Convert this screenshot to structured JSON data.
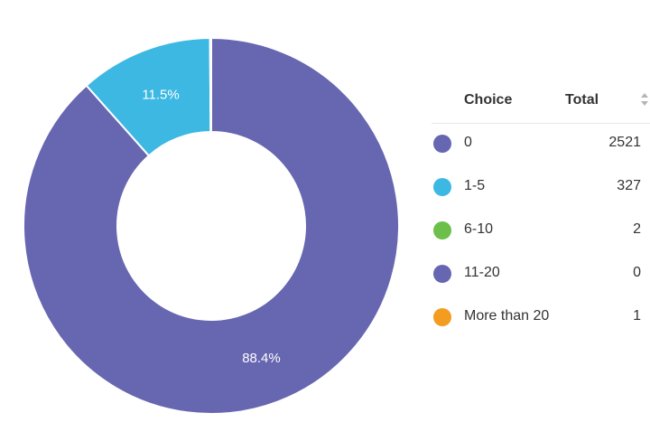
{
  "chart_data": {
    "type": "pie",
    "categories": [
      "0",
      "1-5",
      "6-10",
      "11-20",
      "More than 20"
    ],
    "values": [
      2521,
      327,
      2,
      0,
      1
    ],
    "colors": [
      "#6766b0",
      "#3db8e3",
      "#6cc04a",
      "#6766b0",
      "#f39c1f"
    ],
    "slice_labels": [
      "88.4%",
      "11.5%",
      "",
      "",
      ""
    ],
    "donut": true
  },
  "legend": {
    "header_choice": "Choice",
    "header_total": "Total",
    "sort_icon": "sort-arrows-icon",
    "rows": [
      {
        "label": "0",
        "total": "2521",
        "color": "#6766b0"
      },
      {
        "label": "1-5",
        "total": "327",
        "color": "#3db8e3"
      },
      {
        "label": "6-10",
        "total": "2",
        "color": "#6cc04a"
      },
      {
        "label": "11-20",
        "total": "0",
        "color": "#6766b0"
      },
      {
        "label": "More than 20",
        "total": "1",
        "color": "#f39c1f"
      }
    ]
  }
}
